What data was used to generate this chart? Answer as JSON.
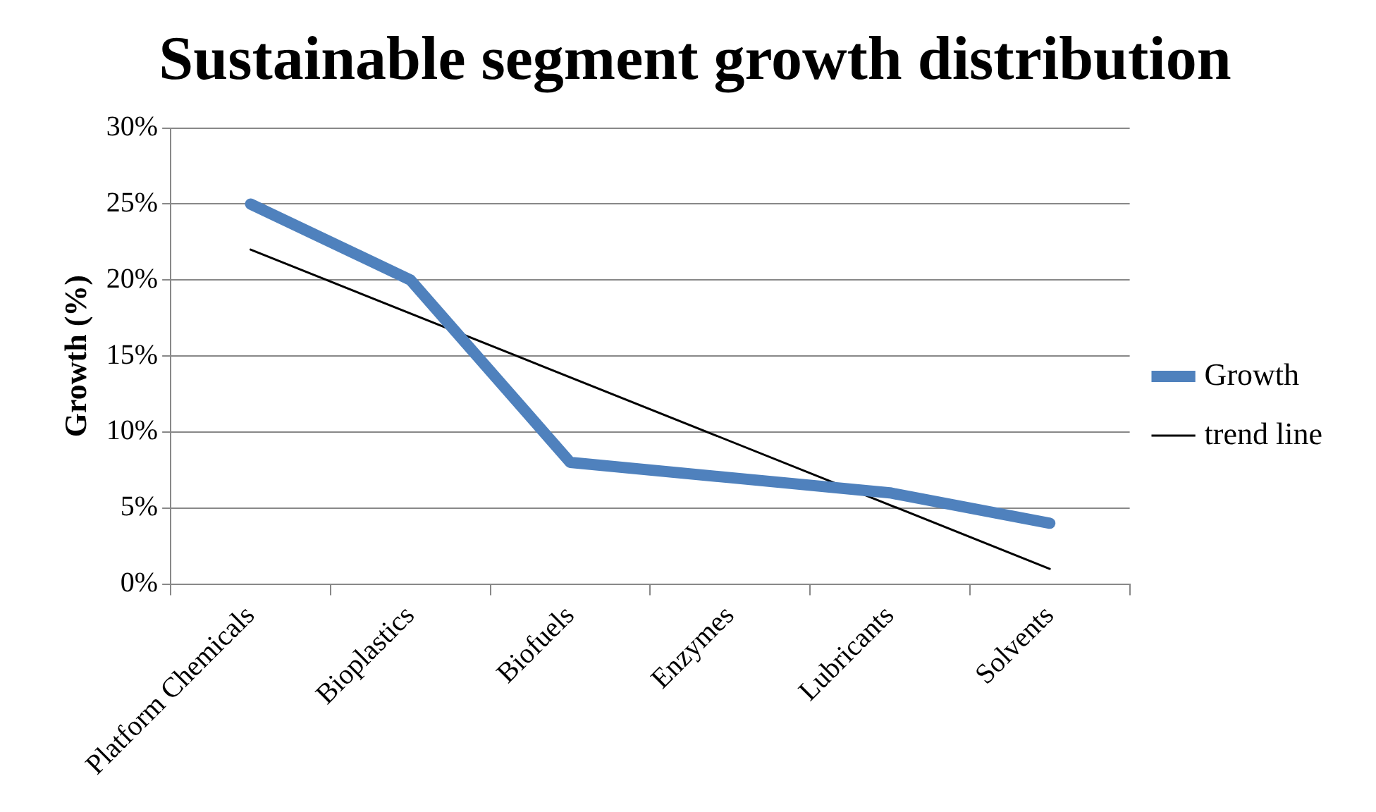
{
  "chart_data": {
    "type": "line",
    "title": "Sustainable segment growth distribution",
    "ylabel": "Growth (%)",
    "categories": [
      "Platform Chemicals",
      "Bioplastics",
      "Biofuels",
      "Enzymes",
      "Lubricants",
      "Solvents"
    ],
    "series": [
      {
        "name": "Growth",
        "color": "#4f81bd",
        "values": [
          25,
          20,
          8,
          7,
          6,
          4
        ]
      },
      {
        "name": "trend line",
        "color": "#000000",
        "values": [
          22,
          null,
          null,
          null,
          null,
          1
        ]
      }
    ],
    "ylim": [
      0,
      30
    ],
    "yticks": [
      {
        "value": 0,
        "label": "0%"
      },
      {
        "value": 5,
        "label": "5%"
      },
      {
        "value": 10,
        "label": "10%"
      },
      {
        "value": 15,
        "label": "15%"
      },
      {
        "value": 20,
        "label": "20%"
      },
      {
        "value": 25,
        "label": "25%"
      },
      {
        "value": 30,
        "label": "30%"
      }
    ],
    "grid": "y",
    "legend": "right",
    "marker": "none"
  }
}
